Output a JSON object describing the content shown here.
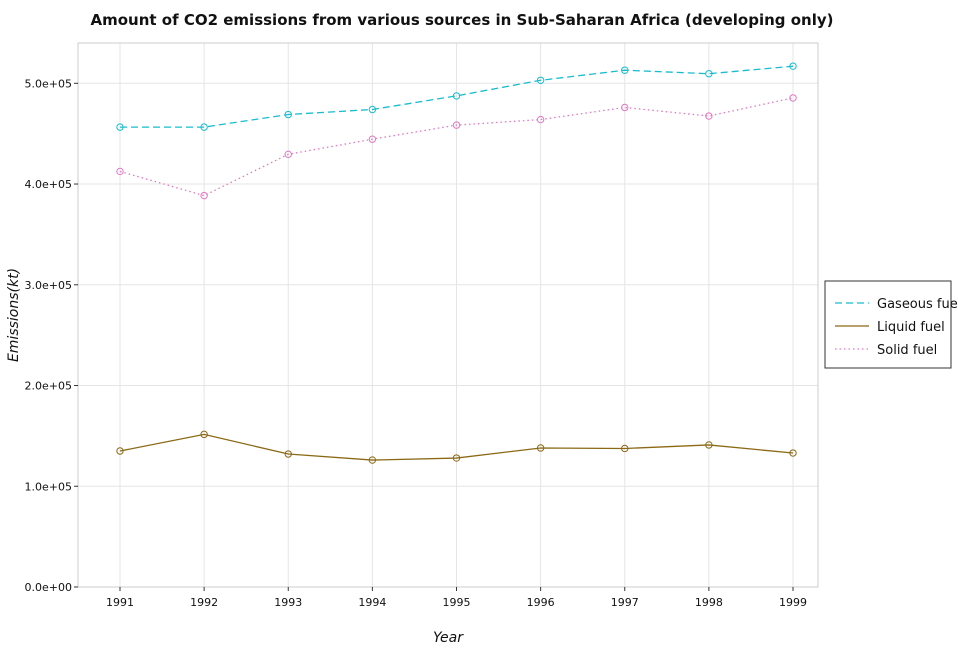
{
  "chart_data": {
    "type": "line",
    "title": "Amount of CO2 emissions from various sources in Sub-Saharan Africa (developing only)",
    "xlabel": "Year",
    "ylabel": "Emissions(kt)",
    "categories": [
      "1991",
      "1992",
      "1993",
      "1994",
      "1995",
      "1996",
      "1997",
      "1998",
      "1999"
    ],
    "ylim": [
      0,
      540000
    ],
    "yticks": [
      {
        "value": 0,
        "label": "0.0e+00"
      },
      {
        "value": 100000,
        "label": "1.0e+05"
      },
      {
        "value": 200000,
        "label": "2.0e+05"
      },
      {
        "value": 300000,
        "label": "3.0e+05"
      },
      {
        "value": 400000,
        "label": "4.0e+05"
      },
      {
        "value": 500000,
        "label": "5.0e+05"
      }
    ],
    "grid": true,
    "legend_position": "right",
    "series": [
      {
        "name": "Gaseous fuel",
        "color": "#17becf",
        "dash": "7,4",
        "values": [
          456500,
          456500,
          469000,
          474000,
          487500,
          503000,
          513000,
          509500,
          517000
        ]
      },
      {
        "name": "Liquid fuel",
        "color": "#8b6914",
        "dash": "",
        "values": [
          135000,
          151500,
          132000,
          126000,
          128000,
          138000,
          137500,
          141000,
          133000
        ]
      },
      {
        "name": "Solid fuel",
        "color": "#e377c2",
        "dash": "1.5,3",
        "values": [
          412500,
          388500,
          429500,
          444500,
          458500,
          464000,
          476000,
          467500,
          485500
        ]
      }
    ]
  }
}
